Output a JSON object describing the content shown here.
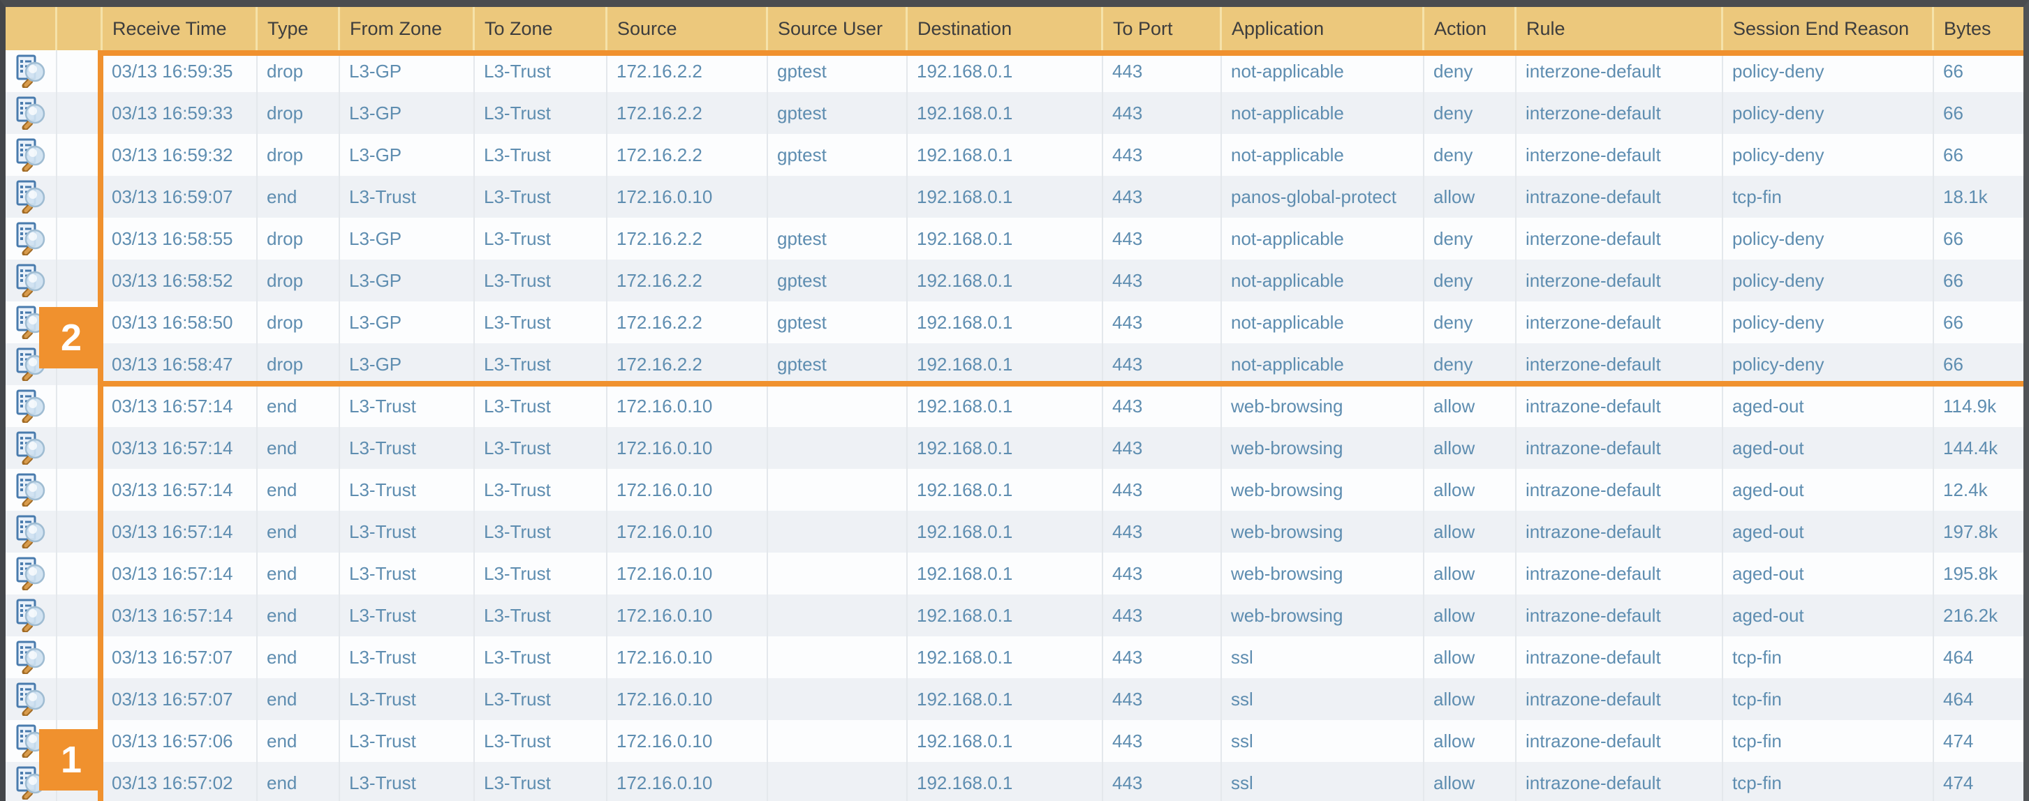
{
  "table": {
    "columns": [
      "Receive Time",
      "Type",
      "From Zone",
      "To Zone",
      "Source",
      "Source User",
      "Destination",
      "To Port",
      "Application",
      "Action",
      "Rule",
      "Session End Reason",
      "Bytes"
    ],
    "row_icon": "log-detail-magnifier",
    "rows": [
      [
        "03/13 16:59:35",
        "drop",
        "L3-GP",
        "L3-Trust",
        "172.16.2.2",
        "gptest",
        "192.168.0.1",
        "443",
        "not-applicable",
        "deny",
        "interzone-default",
        "policy-deny",
        "66"
      ],
      [
        "03/13 16:59:33",
        "drop",
        "L3-GP",
        "L3-Trust",
        "172.16.2.2",
        "gptest",
        "192.168.0.1",
        "443",
        "not-applicable",
        "deny",
        "interzone-default",
        "policy-deny",
        "66"
      ],
      [
        "03/13 16:59:32",
        "drop",
        "L3-GP",
        "L3-Trust",
        "172.16.2.2",
        "gptest",
        "192.168.0.1",
        "443",
        "not-applicable",
        "deny",
        "interzone-default",
        "policy-deny",
        "66"
      ],
      [
        "03/13 16:59:07",
        "end",
        "L3-Trust",
        "L3-Trust",
        "172.16.0.10",
        "",
        "192.168.0.1",
        "443",
        "panos-global-protect",
        "allow",
        "intrazone-default",
        "tcp-fin",
        "18.1k"
      ],
      [
        "03/13 16:58:55",
        "drop",
        "L3-GP",
        "L3-Trust",
        "172.16.2.2",
        "gptest",
        "192.168.0.1",
        "443",
        "not-applicable",
        "deny",
        "interzone-default",
        "policy-deny",
        "66"
      ],
      [
        "03/13 16:58:52",
        "drop",
        "L3-GP",
        "L3-Trust",
        "172.16.2.2",
        "gptest",
        "192.168.0.1",
        "443",
        "not-applicable",
        "deny",
        "interzone-default",
        "policy-deny",
        "66"
      ],
      [
        "03/13 16:58:50",
        "drop",
        "L3-GP",
        "L3-Trust",
        "172.16.2.2",
        "gptest",
        "192.168.0.1",
        "443",
        "not-applicable",
        "deny",
        "interzone-default",
        "policy-deny",
        "66"
      ],
      [
        "03/13 16:58:47",
        "drop",
        "L3-GP",
        "L3-Trust",
        "172.16.2.2",
        "gptest",
        "192.168.0.1",
        "443",
        "not-applicable",
        "deny",
        "interzone-default",
        "policy-deny",
        "66"
      ],
      [
        "03/13 16:57:14",
        "end",
        "L3-Trust",
        "L3-Trust",
        "172.16.0.10",
        "",
        "192.168.0.1",
        "443",
        "web-browsing",
        "allow",
        "intrazone-default",
        "aged-out",
        "114.9k"
      ],
      [
        "03/13 16:57:14",
        "end",
        "L3-Trust",
        "L3-Trust",
        "172.16.0.10",
        "",
        "192.168.0.1",
        "443",
        "web-browsing",
        "allow",
        "intrazone-default",
        "aged-out",
        "144.4k"
      ],
      [
        "03/13 16:57:14",
        "end",
        "L3-Trust",
        "L3-Trust",
        "172.16.0.10",
        "",
        "192.168.0.1",
        "443",
        "web-browsing",
        "allow",
        "intrazone-default",
        "aged-out",
        "12.4k"
      ],
      [
        "03/13 16:57:14",
        "end",
        "L3-Trust",
        "L3-Trust",
        "172.16.0.10",
        "",
        "192.168.0.1",
        "443",
        "web-browsing",
        "allow",
        "intrazone-default",
        "aged-out",
        "197.8k"
      ],
      [
        "03/13 16:57:14",
        "end",
        "L3-Trust",
        "L3-Trust",
        "172.16.0.10",
        "",
        "192.168.0.1",
        "443",
        "web-browsing",
        "allow",
        "intrazone-default",
        "aged-out",
        "195.8k"
      ],
      [
        "03/13 16:57:14",
        "end",
        "L3-Trust",
        "L3-Trust",
        "172.16.0.10",
        "",
        "192.168.0.1",
        "443",
        "web-browsing",
        "allow",
        "intrazone-default",
        "aged-out",
        "216.2k"
      ],
      [
        "03/13 16:57:07",
        "end",
        "L3-Trust",
        "L3-Trust",
        "172.16.0.10",
        "",
        "192.168.0.1",
        "443",
        "ssl",
        "allow",
        "intrazone-default",
        "tcp-fin",
        "464"
      ],
      [
        "03/13 16:57:07",
        "end",
        "L3-Trust",
        "L3-Trust",
        "172.16.0.10",
        "",
        "192.168.0.1",
        "443",
        "ssl",
        "allow",
        "intrazone-default",
        "tcp-fin",
        "464"
      ],
      [
        "03/13 16:57:06",
        "end",
        "L3-Trust",
        "L3-Trust",
        "172.16.0.10",
        "",
        "192.168.0.1",
        "443",
        "ssl",
        "allow",
        "intrazone-default",
        "tcp-fin",
        "474"
      ],
      [
        "03/13 16:57:02",
        "end",
        "L3-Trust",
        "L3-Trust",
        "172.16.0.10",
        "",
        "192.168.0.1",
        "443",
        "ssl",
        "allow",
        "intrazone-default",
        "tcp-fin",
        "474"
      ]
    ]
  },
  "annotations": [
    {
      "label": "1"
    },
    {
      "label": "2"
    }
  ],
  "colors": {
    "header_bg": "#ecc87c",
    "annotation_orange": "#f0912e",
    "cell_text": "#5e8db0",
    "header_text": "#3d3d3d",
    "row_alt_bg": "#eef1f5"
  }
}
